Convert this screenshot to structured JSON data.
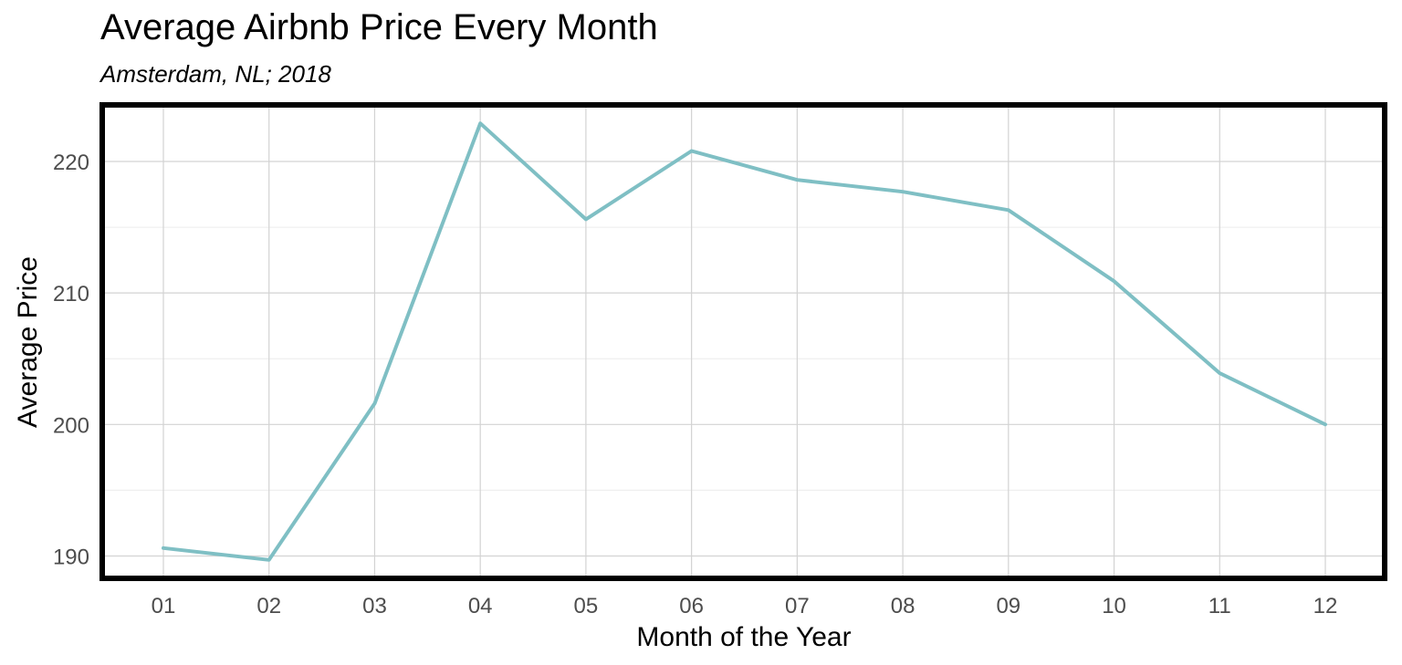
{
  "chart_data": {
    "type": "line",
    "title": "Average Airbnb Price Every Month",
    "subtitle": "Amsterdam, NL; 2018",
    "xlabel": "Month of the Year",
    "ylabel": "Average Price",
    "categories": [
      "01",
      "02",
      "03",
      "04",
      "05",
      "06",
      "07",
      "08",
      "09",
      "10",
      "11",
      "12"
    ],
    "series": [
      {
        "values": [
          190.6,
          189.7,
          201.6,
          222.9,
          215.6,
          220.8,
          218.6,
          217.7,
          216.3,
          210.9,
          203.9,
          200.0
        ]
      }
    ],
    "yticks": [
      190,
      200,
      210,
      220
    ],
    "ylim": [
      188.3,
      224.3
    ],
    "grid": true,
    "legend": "none",
    "line_color": "#7fbfc4",
    "grid_color": "#d3d3d3",
    "border_color": "#000000"
  }
}
